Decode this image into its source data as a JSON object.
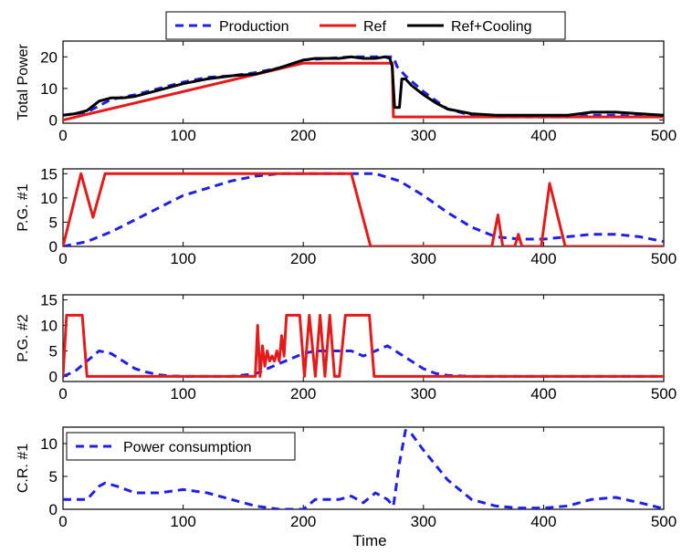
{
  "figure": {
    "xlabel": "Time"
  },
  "legend_top": {
    "entries": [
      {
        "name": "Production",
        "color": "#1f1fe6",
        "dash": true
      },
      {
        "name": "Ref",
        "color": "#e51a1a",
        "dash": false
      },
      {
        "name": "Ref+Cooling",
        "color": "#000000",
        "dash": false
      }
    ]
  },
  "chart_data": [
    {
      "type": "line",
      "ylabel": "Total Power",
      "xlim": [
        0,
        500
      ],
      "ylim": [
        -1,
        25
      ],
      "xticks": [
        0,
        100,
        200,
        300,
        400,
        500
      ],
      "yticks": [
        0,
        10,
        20
      ],
      "series": [
        {
          "name": "Production",
          "color": "#1f1fe6",
          "dash": true,
          "x": [
            0,
            20,
            40,
            60,
            80,
            100,
            120,
            140,
            160,
            180,
            200,
            220,
            240,
            260,
            275,
            278,
            285,
            300,
            320,
            340,
            360,
            380,
            400,
            420,
            440,
            460,
            480,
            500
          ],
          "y": [
            1.5,
            2.5,
            6.5,
            8,
            10,
            12,
            13.5,
            14,
            15,
            16.5,
            19,
            19.5,
            20,
            20,
            20,
            17,
            14,
            9,
            3.5,
            1.5,
            1,
            1,
            1,
            1,
            1.5,
            1.5,
            1.2,
            1
          ]
        },
        {
          "name": "Ref",
          "color": "#e51a1a",
          "dash": false,
          "x": [
            0,
            200,
            274,
            275,
            500
          ],
          "y": [
            0,
            18,
            18,
            1,
            1
          ]
        },
        {
          "name": "Ref+Cooling",
          "color": "#000000",
          "dash": false,
          "x": [
            0,
            10,
            20,
            30,
            40,
            50,
            60,
            80,
            100,
            120,
            140,
            160,
            180,
            200,
            210,
            220,
            230,
            240,
            250,
            260,
            268,
            272,
            274,
            276,
            280,
            282,
            285,
            290,
            300,
            310,
            320,
            340,
            360,
            380,
            400,
            420,
            440,
            460,
            480,
            500
          ],
          "y": [
            1.5,
            2,
            3,
            6,
            7,
            7,
            7.5,
            9.5,
            11.5,
            13,
            14,
            14.5,
            16.5,
            19,
            19.5,
            19.5,
            19.5,
            20,
            19.5,
            19.5,
            20,
            19.5,
            17,
            4,
            4,
            13,
            13,
            11,
            8,
            5.5,
            3.5,
            2,
            1.5,
            1.5,
            1.5,
            1.5,
            2.5,
            2.5,
            2,
            1.5
          ]
        }
      ]
    },
    {
      "type": "line",
      "ylabel": "P.G. #1",
      "xlim": [
        0,
        500
      ],
      "ylim": [
        0,
        16
      ],
      "xticks": [
        0,
        100,
        200,
        300,
        400,
        500
      ],
      "yticks": [
        0,
        5,
        10,
        15
      ],
      "series": [
        {
          "name": "Production",
          "color": "#1f1fe6",
          "dash": true,
          "x": [
            0,
            20,
            40,
            60,
            80,
            100,
            120,
            140,
            160,
            180,
            200,
            220,
            240,
            260,
            280,
            300,
            320,
            340,
            360,
            380,
            400,
            420,
            440,
            460,
            480,
            500
          ],
          "y": [
            0,
            1,
            3,
            5.5,
            8,
            10.5,
            12,
            13.5,
            14.5,
            15,
            15,
            15,
            15,
            15,
            13.5,
            10.5,
            7,
            4,
            2,
            1.5,
            1.5,
            2,
            2.5,
            2.5,
            2,
            1
          ]
        },
        {
          "name": "Ref",
          "color": "#e51a1a",
          "dash": false,
          "x": [
            0,
            15,
            25,
            35,
            240,
            256,
            357,
            362,
            366,
            370,
            376,
            379,
            382,
            385,
            398,
            405,
            418,
            500
          ],
          "y": [
            0,
            15,
            6,
            15,
            15,
            0,
            0,
            6.5,
            0,
            0,
            0,
            2.5,
            0,
            0,
            0,
            13,
            0,
            0
          ]
        }
      ]
    },
    {
      "type": "line",
      "ylabel": "P.G. #2",
      "xlim": [
        0,
        500
      ],
      "ylim": [
        -1,
        16
      ],
      "xticks": [
        0,
        100,
        200,
        300,
        400,
        500
      ],
      "yticks": [
        0,
        5,
        10,
        15
      ],
      "series": [
        {
          "name": "Production",
          "color": "#1f1fe6",
          "dash": true,
          "x": [
            0,
            10,
            20,
            30,
            40,
            50,
            60,
            70,
            80,
            90,
            100,
            120,
            140,
            160,
            170,
            180,
            190,
            200,
            210,
            220,
            230,
            240,
            250,
            260,
            270,
            280,
            290,
            300,
            310,
            320,
            340,
            360,
            380,
            400,
            420,
            440,
            460,
            480,
            500
          ],
          "y": [
            0,
            1,
            3,
            5,
            4.5,
            3,
            1.5,
            0.8,
            0.3,
            0.1,
            0,
            0,
            0,
            0.5,
            1.5,
            2.5,
            3.5,
            4.5,
            5,
            5,
            5,
            5,
            4,
            5,
            6,
            4.5,
            3,
            1.5,
            0.6,
            0.2,
            0,
            0,
            0,
            0,
            0,
            0,
            0,
            0,
            0
          ]
        },
        {
          "name": "Ref",
          "color": "#e51a1a",
          "dash": false,
          "x": [
            0,
            3,
            16,
            20,
            160,
            162,
            164,
            166,
            168,
            170,
            172,
            174,
            176,
            178,
            180,
            182,
            184,
            186,
            190,
            197,
            201,
            205,
            210,
            214,
            218,
            222,
            226,
            230,
            235,
            255,
            259,
            500
          ],
          "y": [
            0,
            12,
            12,
            0,
            0,
            10,
            0,
            6,
            2,
            5,
            3,
            4,
            3,
            5,
            3,
            8,
            4,
            12,
            12,
            12,
            0,
            12,
            0,
            12,
            0,
            12,
            0,
            0,
            12,
            12,
            0,
            0
          ]
        }
      ]
    },
    {
      "type": "line",
      "ylabel": "C.R. #1",
      "xlim": [
        0,
        500
      ],
      "ylim": [
        0,
        12.5
      ],
      "xticks": [
        0,
        100,
        200,
        300,
        400,
        500
      ],
      "yticks": [
        0,
        5,
        10
      ],
      "legend": {
        "placement": "top-left",
        "entries": [
          "Power consumption"
        ]
      },
      "series": [
        {
          "name": "Power consumption",
          "color": "#1f1fe6",
          "dash": true,
          "x": [
            0,
            20,
            30,
            35,
            45,
            60,
            70,
            80,
            100,
            120,
            140,
            160,
            180,
            190,
            200,
            210,
            220,
            230,
            240,
            250,
            260,
            265,
            270,
            275,
            280,
            285,
            290,
            300,
            320,
            340,
            360,
            380,
            400,
            420,
            440,
            460,
            480,
            500
          ],
          "y": [
            1.5,
            1.5,
            3.5,
            4,
            3.5,
            2.5,
            2.5,
            2.5,
            3,
            2.5,
            1.5,
            0.5,
            0,
            0,
            0,
            1.5,
            1.5,
            1.5,
            2,
            1,
            2.5,
            2,
            1.5,
            0.5,
            7,
            12,
            11.5,
            9,
            4.5,
            1.5,
            0.5,
            0.2,
            0.2,
            0.5,
            1.5,
            1.8,
            1,
            0.1
          ]
        }
      ]
    }
  ]
}
